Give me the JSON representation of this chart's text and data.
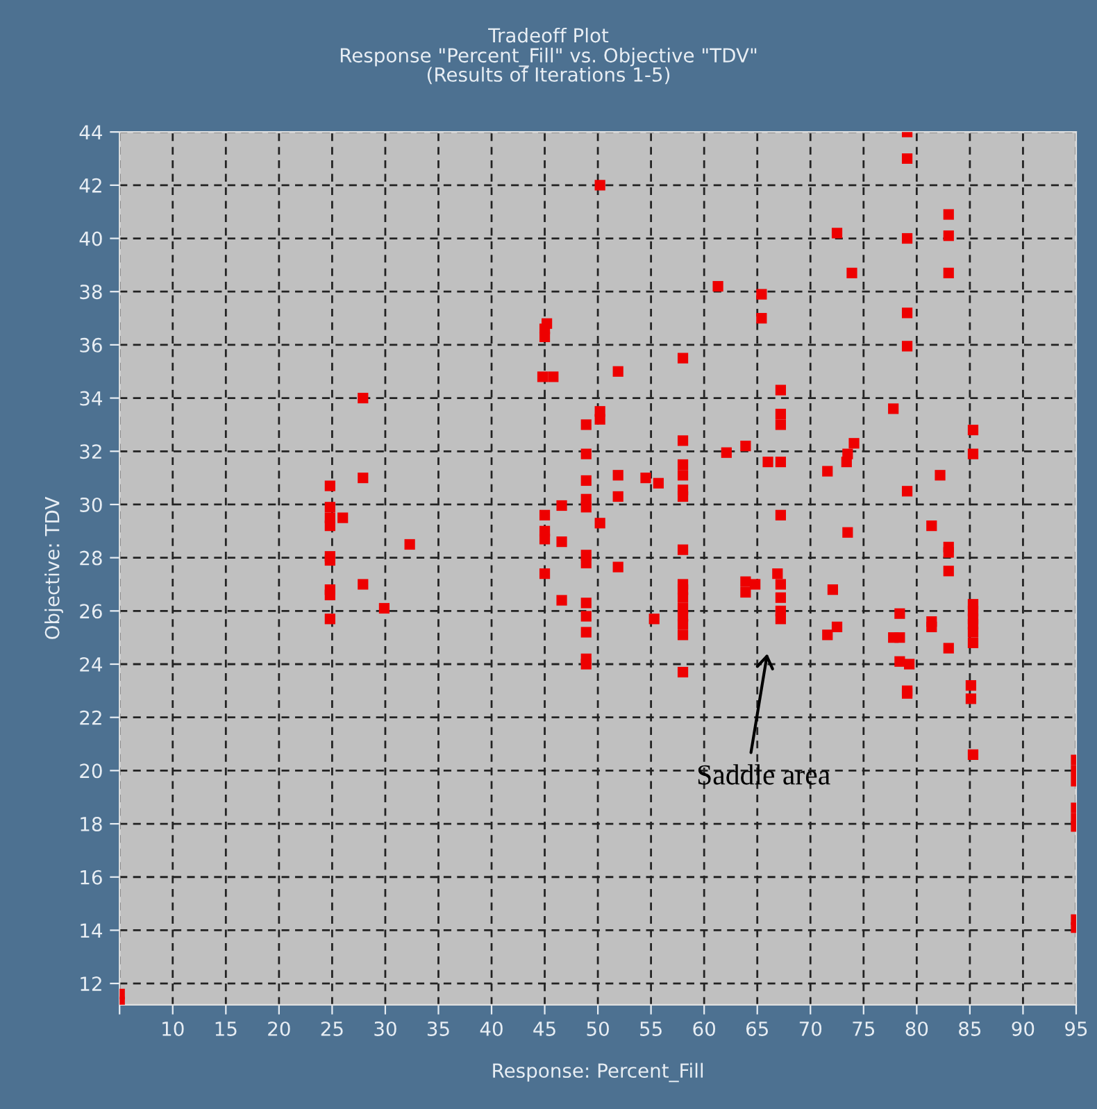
{
  "chart_data": {
    "type": "scatter",
    "title": "Tradeoff Plot",
    "subtitle": "Response \"Percent_Fill\" vs. Objective \"TDV\"\n(Results of Iterations 1-5)",
    "xlabel": "Response: Percent_Fill",
    "ylabel": "Objective: TDV",
    "series": [
      {
        "color": "#ee0000",
        "x": [
          27.9,
          27.9,
          24.8,
          24.8,
          24.8,
          24.8,
          26.0,
          32.3,
          24.8,
          24.8,
          27.9,
          24.8,
          24.8,
          29.9,
          24.8,
          50.2,
          61.3,
          45.2,
          45.0,
          45.0,
          58.0,
          51.9,
          44.8,
          45.8,
          50.2,
          50.2,
          48.9,
          58.0,
          48.9,
          62.1,
          63.9,
          58.0,
          51.9,
          58.0,
          54.5,
          55.7,
          58.0,
          58.0,
          48.9,
          51.9,
          46.6,
          48.9,
          48.9,
          45.0,
          45.0,
          45.0,
          46.6,
          50.2,
          58.0,
          48.9,
          48.9,
          51.9,
          45.0,
          46.6,
          58.0,
          58.0,
          58.0,
          58.0,
          58.0,
          58.0,
          58.0,
          63.9,
          63.9,
          48.9,
          48.9,
          48.9,
          55.3,
          48.9,
          48.9,
          58.0,
          79.1,
          79.1,
          83.0,
          83.0,
          72.5,
          79.1,
          73.9,
          83.0,
          65.4,
          65.4,
          79.1,
          79.1,
          67.2,
          67.2,
          67.2,
          77.8,
          85.3,
          85.3,
          74.1,
          73.5,
          73.4,
          66.0,
          67.2,
          71.6,
          82.2,
          79.1,
          67.2,
          73.5,
          81.4,
          83.0,
          83.0,
          83.0,
          66.9,
          67.2,
          67.2,
          67.2,
          67.2,
          64.8,
          72.1,
          78.4,
          85.3,
          85.3,
          85.3,
          85.3,
          85.3,
          85.3,
          81.4,
          81.4,
          72.5,
          71.6,
          77.8,
          78.4,
          83.0,
          78.4,
          79.3,
          79.1,
          79.1,
          85.1,
          85.1,
          85.3,
          95,
          95,
          95,
          95,
          95,
          95,
          95,
          95,
          5,
          5
        ],
        "values": [
          34.0,
          31.0,
          30.7,
          29.9,
          29.5,
          29.2,
          29.5,
          28.5,
          28.05,
          27.9,
          27.0,
          26.8,
          26.6,
          26.1,
          25.7,
          42.0,
          38.2,
          36.8,
          36.6,
          36.3,
          35.5,
          35.0,
          34.8,
          34.8,
          33.5,
          33.2,
          33.0,
          32.4,
          31.9,
          31.95,
          32.2,
          31.5,
          31.1,
          31.1,
          31.0,
          30.8,
          30.55,
          30.3,
          30.9,
          30.3,
          29.96,
          30.2,
          29.9,
          29.6,
          29.0,
          28.7,
          28.6,
          29.3,
          28.3,
          28.1,
          27.8,
          27.65,
          27.4,
          26.4,
          27.0,
          26.8,
          26.5,
          26.1,
          25.8,
          25.5,
          25.1,
          27.1,
          26.7,
          26.3,
          25.8,
          25.2,
          25.7,
          24.2,
          24.0,
          23.7,
          44.0,
          43.0,
          40.9,
          40.1,
          40.2,
          40.0,
          38.7,
          38.7,
          37.9,
          37.0,
          37.2,
          35.95,
          34.3,
          33.4,
          33.0,
          33.6,
          32.8,
          31.9,
          32.3,
          31.9,
          31.6,
          31.6,
          31.6,
          31.25,
          31.1,
          30.5,
          29.6,
          28.95,
          29.2,
          28.4,
          28.2,
          27.5,
          27.4,
          27.0,
          26.5,
          26.0,
          25.7,
          27.0,
          26.8,
          25.9,
          26.25,
          26.0,
          25.7,
          25.5,
          25.2,
          24.8,
          25.6,
          25.4,
          25.4,
          25.1,
          25.0,
          25.0,
          24.6,
          24.1,
          24.0,
          23.0,
          22.9,
          23.2,
          22.7,
          20.6,
          20.4,
          20.0,
          19.6,
          18.6,
          18.2,
          17.9,
          14.4,
          14.1,
          11.6,
          11.3
        ]
      }
    ],
    "marker": "square",
    "grid": true,
    "xlim": [
      5,
      95
    ],
    "xticks": [
      {
        "value": 5,
        "label": null
      },
      10,
      15,
      20,
      25,
      30,
      35,
      40,
      45,
      50,
      55,
      60,
      65,
      70,
      75,
      80,
      85,
      90,
      95
    ],
    "ylim": [
      11.2,
      44
    ],
    "yticks": [
      12,
      14,
      16,
      18,
      20,
      22,
      24,
      26,
      28,
      30,
      32,
      34,
      36,
      38,
      40,
      42,
      44
    ],
    "annotations": [
      "Saddle area"
    ]
  }
}
